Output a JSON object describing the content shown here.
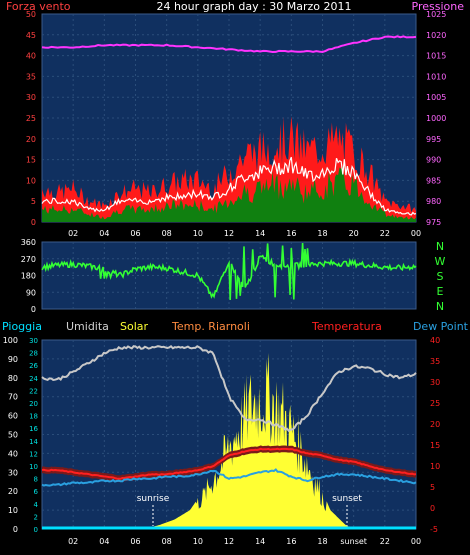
{
  "header": {
    "title": "24 hour graph day : 30 Marzo 2011",
    "left_label": "Forza vento",
    "right_label": "Pressione"
  },
  "colors": {
    "background": "#000000",
    "panel": "#103060",
    "grid": "#2a4d7a",
    "pressure": "#ff33ff",
    "wind_gust": "#ff1a1a",
    "wind_avg": "#108010",
    "wind_line": "#ffffff",
    "direction": "#33ff33",
    "humidity": "#c8c8c8",
    "solar": "#ffff33",
    "temperature": "#ff2020",
    "temperature_band": "#7a1a1a",
    "dew_point": "#2aa0e0",
    "rain": "#00e0ff",
    "axis_left_wind": "#ff4040",
    "axis_right_pressure": "#ff66ff",
    "axis_right_temp": "#ff2020",
    "axis_rain": "#00e0e0",
    "axis_solar": "#ffff40"
  },
  "wind_chart": {
    "y_left_ticks": [
      "0",
      "5",
      "10",
      "15",
      "20",
      "25",
      "30",
      "35",
      "40",
      "45",
      "50"
    ],
    "y_right_ticks": [
      "975",
      "980",
      "985",
      "990",
      "995",
      "1000",
      "1005",
      "1010",
      "1015",
      "1020",
      "1025"
    ],
    "x_ticks": [
      "02",
      "04",
      "06",
      "08",
      "10",
      "12",
      "14",
      "16",
      "18",
      "20",
      "22",
      "00"
    ]
  },
  "direction_chart": {
    "y_ticks": [
      "0",
      "90",
      "180",
      "270",
      "360"
    ],
    "compass": [
      "N",
      "W",
      "S",
      "E",
      "N"
    ]
  },
  "weather_chart": {
    "legend": {
      "rain": "Pioggia",
      "humidity": "Umidita",
      "solar": "Solar",
      "temp_sensor": "Temp. Riarnoli",
      "temperature": "Temperatura",
      "dew_point": "Dew Point"
    },
    "y_left_humidity_ticks": [
      "0",
      "10",
      "20",
      "30",
      "40",
      "50",
      "60",
      "70",
      "80",
      "90",
      "100"
    ],
    "y_left_rain_ticks": [
      "0",
      "2",
      "4",
      "6",
      "8",
      "10",
      "12",
      "14",
      "16",
      "18",
      "20",
      "22",
      "24",
      "26",
      "28",
      "30"
    ],
    "y_right_temp_ticks": [
      "-5",
      "0",
      "5",
      "10",
      "15",
      "20",
      "25",
      "30",
      "35",
      "40"
    ],
    "x_ticks": [
      "02",
      "04",
      "06",
      "08",
      "10",
      "12",
      "14",
      "16",
      "18",
      "sunset",
      "22",
      "00"
    ],
    "sunrise_label": "sunrise",
    "sunset_label": "sunset"
  },
  "chart_data": [
    {
      "type": "line",
      "title": "24 hour graph day : 30 Marzo 2011",
      "ylabel": "Forza vento",
      "ylabel_right": "Pressione",
      "xlim": [
        0,
        24
      ],
      "ylim": [
        0,
        50
      ],
      "ylim_right": [
        975,
        1025
      ],
      "series": [
        {
          "name": "Pressione",
          "axis": "right",
          "x": [
            0,
            2,
            4,
            6,
            8,
            10,
            12,
            14,
            16,
            18,
            20,
            22,
            24
          ],
          "values": [
            1017,
            1017,
            1017.5,
            1017.5,
            1017.5,
            1017,
            1016.5,
            1016,
            1016,
            1016,
            1018,
            1019.5,
            1019.5
          ]
        },
        {
          "name": "",
          "kind": "gust",
          "x": [
            0,
            1,
            2,
            3,
            4,
            5,
            6,
            7,
            8,
            9,
            10,
            11,
            12,
            13,
            14,
            15,
            16,
            17,
            18,
            19,
            20,
            21,
            22,
            23,
            24
          ],
          "values": [
            8,
            7,
            8,
            5,
            4,
            7,
            8,
            7,
            9,
            10,
            10,
            8,
            12,
            16,
            17,
            19,
            20,
            17,
            18,
            20,
            17,
            12,
            5,
            4,
            3
          ]
        },
        {
          "name": "",
          "kind": "average",
          "x": [
            0,
            1,
            2,
            3,
            4,
            5,
            6,
            7,
            8,
            9,
            10,
            11,
            12,
            13,
            14,
            15,
            16,
            17,
            18,
            19,
            20,
            21,
            22,
            23,
            24
          ],
          "values": [
            3,
            3,
            3,
            2,
            1,
            3,
            3,
            3,
            4,
            4,
            4,
            3,
            5,
            7,
            8,
            9,
            9,
            7,
            8,
            10,
            9,
            5,
            2,
            1,
            1
          ]
        },
        {
          "name": "",
          "kind": "mean",
          "x": [
            0,
            1,
            2,
            3,
            4,
            5,
            6,
            7,
            8,
            9,
            10,
            11,
            12,
            13,
            14,
            15,
            16,
            17,
            18,
            19,
            20,
            21,
            22,
            23,
            24
          ],
          "values": [
            5,
            5,
            5,
            3,
            3,
            5,
            5,
            5,
            6,
            6,
            7,
            6,
            8,
            11,
            12,
            13,
            14,
            11,
            12,
            14,
            12,
            7,
            3,
            2,
            2
          ]
        }
      ]
    },
    {
      "type": "line",
      "ylabel": "",
      "xlim": [
        0,
        24
      ],
      "ylim": [
        0,
        360
      ],
      "series": [
        {
          "name": "",
          "x": [
            0,
            1,
            2,
            3,
            4,
            5,
            6,
            7,
            8,
            9,
            10,
            11,
            12,
            13,
            14,
            15,
            16,
            17,
            18,
            19,
            20,
            21,
            22,
            23,
            24
          ],
          "values": [
            225,
            235,
            240,
            230,
            215,
            180,
            215,
            225,
            220,
            200,
            180,
            60,
            260,
            100,
            280,
            240,
            230,
            240,
            245,
            245,
            245,
            235,
            225,
            220,
            230
          ]
        }
      ]
    },
    {
      "type": "line",
      "ylabel": "",
      "xlim": [
        0,
        24
      ],
      "ylim": [
        0,
        100
      ],
      "ylim_rain": [
        0,
        30
      ],
      "ylim_right": [
        -5,
        40
      ],
      "ylim_solar": [
        0,
        100
      ],
      "series": [
        {
          "name": "Umidita",
          "axis": "humidity",
          "x": [
            0,
            1,
            2,
            3,
            4,
            5,
            6,
            7,
            8,
            9,
            10,
            11,
            12,
            13,
            14,
            15,
            16,
            17,
            18,
            19,
            20,
            21,
            22,
            23,
            24
          ],
          "values": [
            80,
            79,
            83,
            88,
            93,
            96,
            96,
            96,
            96,
            96,
            96,
            93,
            70,
            58,
            58,
            55,
            52,
            60,
            72,
            83,
            86,
            85,
            82,
            80,
            82
          ]
        },
        {
          "name": "Solar",
          "axis": "solar",
          "x": [
            0,
            6.5,
            7.5,
            8.5,
            9.5,
            10.5,
            11.5,
            12.5,
            13.5,
            14.5,
            15.5,
            16.5,
            17.5,
            18.5,
            19.5,
            20,
            24
          ],
          "values": [
            0,
            0,
            2,
            5,
            10,
            22,
            40,
            60,
            78,
            82,
            70,
            52,
            30,
            10,
            2,
            0,
            0
          ]
        },
        {
          "name": "Temperatura",
          "axis": "right",
          "x": [
            0,
            1,
            2,
            3,
            4,
            5,
            6,
            7,
            8,
            9,
            10,
            11,
            12,
            13,
            14,
            15,
            16,
            17,
            18,
            19,
            20,
            21,
            22,
            23,
            24
          ],
          "values": [
            9,
            9,
            8.5,
            8,
            7.5,
            7,
            7.5,
            8,
            8,
            8.5,
            9,
            10,
            12.5,
            13.5,
            14,
            14,
            14,
            13,
            12.5,
            11.5,
            11,
            10,
            9,
            8.5,
            8
          ]
        },
        {
          "name": "Dew Point",
          "axis": "right",
          "x": [
            0,
            1,
            2,
            3,
            4,
            5,
            6,
            7,
            8,
            9,
            10,
            11,
            12,
            13,
            14,
            15,
            16,
            17,
            18,
            19,
            20,
            21,
            22,
            23,
            24
          ],
          "values": [
            5.5,
            5.5,
            6,
            6,
            6.5,
            6.5,
            7,
            7,
            7.5,
            7.5,
            8,
            9,
            7,
            7.5,
            8.5,
            9,
            7.5,
            6.5,
            7.5,
            8,
            8,
            7.5,
            7,
            6.5,
            6
          ]
        },
        {
          "name": "Pioggia",
          "axis": "rain",
          "x": [
            0,
            24
          ],
          "values": [
            0,
            0
          ]
        }
      ]
    }
  ]
}
